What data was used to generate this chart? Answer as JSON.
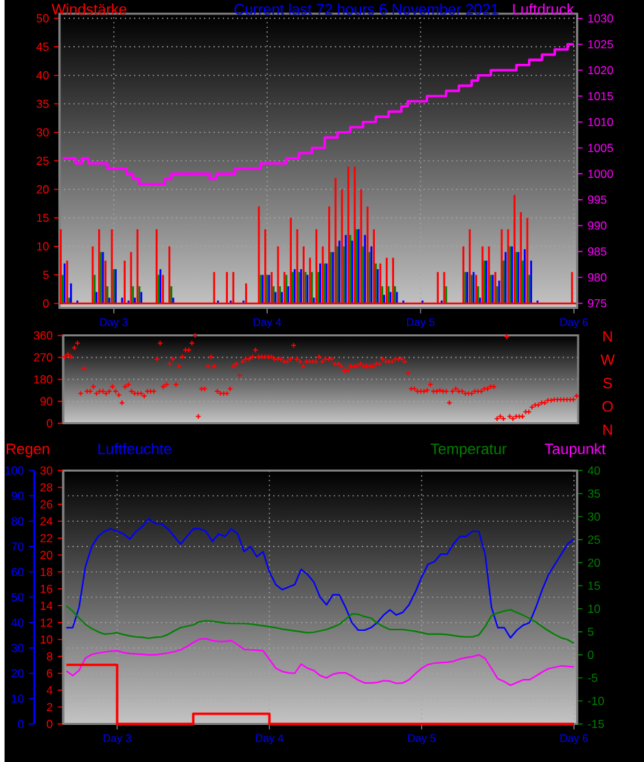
{
  "chart_data": [
    {
      "type": "bar",
      "title": "Current last 72 hours 6 November 2021",
      "ylabel": "Windstärke",
      "y2label": "Luftdruck",
      "categories": [
        null,
        null,
        null,
        null,
        null,
        null,
        null,
        null,
        "Day 3",
        null,
        null,
        null,
        null,
        null,
        null,
        null,
        null,
        null,
        null,
        null,
        null,
        null,
        null,
        null,
        null,
        null,
        null,
        null,
        null,
        null,
        null,
        null,
        "Day 4",
        null,
        null,
        null,
        null,
        null,
        null,
        null,
        null,
        null,
        null,
        null,
        null,
        null,
        null,
        null,
        null,
        null,
        null,
        null,
        null,
        null,
        null,
        null,
        "Day 5",
        null,
        null,
        null,
        null,
        null,
        null,
        null,
        null,
        null,
        null,
        null,
        null,
        null,
        null,
        null,
        null,
        null,
        null,
        null,
        null,
        null,
        null,
        null,
        "Day 6"
      ],
      "ylim": [
        -0.8,
        50.8
      ],
      "yticks": [
        0,
        5,
        10,
        15,
        20,
        25,
        30,
        35,
        40,
        45,
        50
      ],
      "y2lim": [
        974.1,
        1030.9
      ],
      "y2ticks": [
        975,
        980,
        985,
        990,
        995,
        1000,
        1005,
        1010,
        1015,
        1020,
        1025,
        1030
      ],
      "grid": true,
      "ref_lines": [
        {
          "axis": "y",
          "value": 0,
          "color": "#ff0000"
        }
      ],
      "series": [
        {
          "color": "#ff0000",
          "values": [
            13,
            7.5,
            0,
            0,
            0,
            10,
            13,
            7.5,
            13,
            0,
            7.5,
            9,
            13,
            0,
            0,
            13,
            5,
            10,
            0,
            0,
            0,
            0,
            0,
            0,
            5.5,
            0,
            5.5,
            5.5,
            0,
            3.5,
            0,
            17,
            13,
            5.5,
            10,
            5.5,
            15,
            13,
            10,
            8,
            13,
            10,
            17,
            22,
            20,
            24,
            24,
            20,
            17,
            13,
            7,
            8,
            8,
            0,
            0,
            0,
            0,
            0,
            0,
            5.5,
            5.5,
            0,
            0,
            10,
            13,
            5,
            10,
            10,
            5.5,
            13,
            13,
            19,
            16,
            15,
            0,
            0,
            0,
            0,
            0,
            0,
            5.5
          ]
        },
        {
          "color": "#008000",
          "values": [
            5,
            1,
            0,
            0,
            0,
            5,
            9,
            3,
            6,
            0,
            0,
            3,
            3,
            0,
            0,
            5,
            0,
            3,
            0,
            0,
            0,
            0,
            0,
            0,
            0,
            0,
            0,
            0,
            0,
            0,
            0,
            5,
            5,
            3,
            3,
            5,
            5.5,
            5.5,
            5.5,
            5.5,
            5.5,
            7,
            9,
            10,
            10,
            12,
            13,
            10,
            9,
            7,
            3,
            3,
            3,
            0,
            0,
            0,
            0,
            0,
            0,
            0,
            3,
            0,
            0,
            5.5,
            5,
            3,
            7.5,
            5,
            3,
            7.5,
            10,
            9,
            7.5,
            5,
            0,
            0,
            0,
            0,
            0,
            0,
            0
          ]
        },
        {
          "color": "#0000ff",
          "values": [
            7,
            3.5,
            0.5,
            0,
            0,
            2,
            9,
            1,
            6,
            1,
            0.5,
            1,
            2,
            0,
            0,
            6,
            0,
            1,
            0,
            0,
            0,
            0,
            0,
            0,
            0.5,
            0,
            0.5,
            0,
            0.5,
            0,
            0,
            5,
            5,
            2,
            2,
            3,
            6,
            6,
            5,
            1,
            7,
            7,
            9,
            11,
            12,
            11,
            13,
            12,
            10,
            6,
            1.5,
            2,
            2,
            0.5,
            0,
            0,
            0.5,
            0,
            0,
            0.5,
            0,
            0,
            0,
            5.5,
            5.5,
            1,
            7.5,
            5,
            4,
            9,
            10,
            9,
            9.5,
            7.5,
            0.5,
            0,
            0,
            0,
            0,
            0,
            0
          ]
        },
        {
          "type": "step",
          "axis": "y2",
          "color": "#ff00ff",
          "values": [
            1003,
            1003,
            1002,
            1003,
            1002,
            1002,
            1002,
            1001,
            1001,
            1001,
            1000,
            999,
            998,
            998,
            998,
            998,
            999,
            1000,
            1000,
            1000,
            1000,
            1000,
            1000,
            999,
            1000,
            1000,
            1000,
            1001,
            1001,
            1001,
            1001,
            1002,
            1002,
            1002,
            1002,
            1003,
            1003,
            1004,
            1004,
            1005,
            1005,
            1007,
            1007,
            1008,
            1008,
            1009,
            1009,
            1010,
            1010,
            1011,
            1011,
            1012,
            1012,
            1013,
            1014,
            1014,
            1014,
            1015,
            1015,
            1015,
            1016,
            1016,
            1017,
            1017,
            1018,
            1019,
            1019,
            1020,
            1020,
            1020,
            1020,
            1021,
            1021,
            1022,
            1022,
            1023,
            1023,
            1024,
            1024,
            1025,
            1025
          ]
        }
      ]
    },
    {
      "type": "scatter",
      "marker": "cross",
      "color": "#ff0000",
      "grid": "y",
      "categories": [
        null,
        null,
        null,
        null,
        null,
        null,
        null,
        null,
        null,
        null,
        null,
        null,
        null,
        null,
        null,
        null,
        null,
        null,
        null,
        null,
        null,
        null,
        null,
        null,
        null,
        null,
        null,
        null,
        null,
        null,
        null,
        null,
        null,
        null,
        null,
        null,
        null,
        null,
        null,
        null,
        null,
        null,
        null,
        null,
        null,
        null,
        null,
        null,
        null,
        null,
        null,
        null,
        null,
        null,
        null,
        null,
        null,
        null,
        null,
        null,
        null,
        null,
        null,
        null,
        null,
        null,
        null,
        null,
        null,
        null,
        null,
        null,
        null,
        null,
        null,
        null,
        null,
        null,
        null,
        null,
        null,
        null,
        null,
        null,
        null,
        null,
        null,
        null,
        null,
        null,
        null,
        null,
        null,
        null,
        null,
        null,
        null,
        null,
        null,
        null,
        null,
        null,
        null,
        null,
        null,
        null,
        null,
        null,
        null,
        null,
        null,
        null,
        null,
        null,
        null,
        null,
        null,
        null,
        null,
        null,
        null,
        null,
        null,
        null,
        null,
        null,
        null,
        null,
        null,
        null,
        null,
        null,
        null,
        null,
        null,
        null,
        null,
        null,
        null,
        null,
        null,
        null,
        null,
        null,
        null,
        null,
        null,
        null,
        null,
        null,
        null,
        null,
        null,
        null,
        null,
        null,
        null,
        null,
        null,
        null,
        null,
        null
      ],
      "ylim": [
        0,
        360
      ],
      "yticks": [
        0,
        90,
        180,
        270,
        360
      ],
      "annotations": [
        "N",
        "W",
        "S",
        "O",
        "N"
      ],
      "values": [
        272,
        281,
        272,
        309,
        328,
        122,
        225,
        131,
        131,
        150,
        122,
        131,
        131,
        122,
        131,
        150,
        131,
        116,
        84,
        150,
        159,
        131,
        122,
        122,
        122,
        112,
        131,
        131,
        131,
        263,
        328,
        150,
        159,
        244,
        263,
        159,
        234,
        272,
        300,
        300,
        328,
        360,
        28,
        141,
        141,
        234,
        272,
        234,
        131,
        122,
        122,
        122,
        141,
        234,
        244,
        197,
        253,
        263,
        263,
        272,
        300,
        272,
        272,
        272,
        272,
        272,
        263,
        263,
        263,
        253,
        253,
        263,
        319,
        263,
        253,
        234,
        253,
        253,
        253,
        253,
        272,
        253,
        263,
        263,
        263,
        244,
        244,
        234,
        216,
        216,
        234,
        234,
        234,
        244,
        234,
        234,
        234,
        234,
        244,
        244,
        263,
        253,
        253,
        253,
        263,
        263,
        263,
        253,
        206,
        141,
        141,
        131,
        131,
        131,
        135,
        159,
        131,
        131,
        135,
        131,
        131,
        84,
        131,
        141,
        131,
        131,
        122,
        122,
        122,
        131,
        131,
        131,
        141,
        141,
        150,
        150,
        19,
        28,
        19,
        355,
        28,
        19,
        28,
        28,
        28,
        47,
        47,
        66,
        75,
        75,
        84,
        84,
        94,
        94,
        97,
        97,
        97,
        97,
        97,
        97,
        97,
        112
      ]
    },
    {
      "type": "line",
      "legend": "top",
      "grid": true,
      "categories": [
        null,
        null,
        null,
        null,
        null,
        null,
        null,
        null,
        "Day 3",
        null,
        null,
        null,
        null,
        null,
        null,
        null,
        null,
        null,
        null,
        null,
        null,
        null,
        null,
        null,
        null,
        null,
        null,
        null,
        null,
        null,
        null,
        null,
        "Day 4",
        null,
        null,
        null,
        null,
        null,
        null,
        null,
        null,
        null,
        null,
        null,
        null,
        null,
        null,
        null,
        null,
        null,
        null,
        null,
        null,
        null,
        null,
        null,
        "Day 5",
        null,
        null,
        null,
        null,
        null,
        null,
        null,
        null,
        null,
        null,
        null,
        null,
        null,
        null,
        null,
        null,
        null,
        null,
        null,
        null,
        null,
        null,
        null,
        "Day 6"
      ],
      "ylim": [
        0,
        100
      ],
      "yticks": [
        0,
        10,
        20,
        30,
        40,
        50,
        60,
        70,
        80,
        90,
        100
      ],
      "y2lim": [
        -15,
        40
      ],
      "y2ticks": [
        -15,
        -10,
        -5,
        0,
        5,
        10,
        15,
        20,
        25,
        30,
        35,
        40
      ],
      "y3lim": [
        0,
        30
      ],
      "y3ticks": [
        0,
        2,
        4,
        6,
        8,
        10,
        12,
        14,
        16,
        18,
        20,
        22,
        24,
        26,
        28,
        30
      ],
      "series": [
        {
          "name": "Regen",
          "type": "step",
          "axis": "y3",
          "color": "#ff0000",
          "values": [
            7,
            7,
            7,
            7,
            7,
            7,
            7,
            7,
            0,
            0,
            0,
            0,
            0,
            0,
            0,
            0,
            0,
            0,
            0,
            0,
            1.2,
            1.2,
            1.2,
            1.2,
            1.2,
            1.2,
            1.2,
            1.2,
            1.2,
            1.2,
            1.2,
            1.2,
            0,
            0,
            0,
            0,
            0,
            0,
            0,
            0,
            0,
            0,
            0,
            0,
            0,
            0,
            0,
            0,
            0,
            0,
            0,
            0,
            0,
            0,
            0,
            0,
            0,
            0,
            0,
            0,
            0,
            0,
            0,
            0,
            0,
            0,
            0,
            0,
            0,
            0,
            0,
            0,
            0,
            0,
            0,
            0,
            0,
            0,
            0,
            0,
            0
          ]
        },
        {
          "name": "Luftfeuchte",
          "color": "#0000ff",
          "values": [
            38,
            38,
            46,
            62,
            70,
            74,
            76,
            77,
            76,
            75,
            73,
            76,
            78,
            81,
            79,
            79,
            77,
            74,
            71,
            74,
            77,
            77,
            76,
            72,
            75,
            74,
            77,
            75,
            68,
            70,
            66,
            68,
            60,
            55,
            53,
            54,
            55,
            61,
            59,
            56,
            50,
            47,
            51,
            51,
            46,
            40,
            37,
            37,
            38,
            40,
            43,
            45,
            43,
            44,
            47,
            52,
            58,
            63,
            64,
            67,
            67,
            71,
            74,
            74,
            76,
            76,
            67,
            46,
            38,
            38,
            34,
            37,
            39,
            40,
            46,
            53,
            59,
            63,
            67,
            71,
            73
          ]
        },
        {
          "name": "Temperatur",
          "axis": "y2",
          "color": "#008000",
          "values": [
            10.6,
            9.5,
            8,
            6.6,
            5.7,
            5,
            4.5,
            4.6,
            4.8,
            4.4,
            4.1,
            3.9,
            3.8,
            3.6,
            3.8,
            3.9,
            4.4,
            5.2,
            5.9,
            6.2,
            6.5,
            7.2,
            7.4,
            7.3,
            7.1,
            6.9,
            6.8,
            6.8,
            6.8,
            6.7,
            6.5,
            6.3,
            6.1,
            5.9,
            5.6,
            5.4,
            5.2,
            5,
            4.8,
            4.9,
            5.2,
            5.5,
            6,
            6.6,
            7.7,
            8.9,
            8.8,
            8.3,
            8,
            6.9,
            6.1,
            5.5,
            5.5,
            5.5,
            5.3,
            5.1,
            4.8,
            4.5,
            4.5,
            4.5,
            4.4,
            4.2,
            4,
            3.9,
            3.9,
            4.3,
            6.1,
            8.5,
            9.1,
            9.5,
            9.8,
            9.2,
            8.6,
            7.9,
            7.1,
            6.1,
            5.2,
            4.4,
            3.7,
            3.3,
            2.5
          ]
        },
        {
          "name": "Taupunkt",
          "axis": "y2",
          "color": "#ff00ff",
          "values": [
            -3.5,
            -4.5,
            -3.4,
            -0.7,
            0.1,
            0.4,
            0.6,
            0.8,
            0.9,
            0.5,
            0.3,
            0.2,
            0.1,
            0,
            0,
            0.2,
            0.4,
            0.7,
            1.1,
            1.8,
            2.7,
            3.4,
            3.5,
            3.1,
            2.9,
            2.9,
            3.1,
            2.2,
            1.2,
            1.1,
            1,
            0.9,
            -1,
            -2.9,
            -3.6,
            -3.9,
            -4,
            -2,
            -2.9,
            -3.4,
            -4.5,
            -5,
            -4.2,
            -3.9,
            -3.9,
            -4.6,
            -5.5,
            -6.1,
            -6.1,
            -6,
            -5.6,
            -5.7,
            -6.2,
            -6.1,
            -5.4,
            -4.1,
            -2.9,
            -2.1,
            -1.8,
            -1.7,
            -1.6,
            -1.4,
            -0.9,
            -0.6,
            -0.4,
            0,
            -0.8,
            -3,
            -5.2,
            -5.8,
            -6.6,
            -6,
            -5.4,
            -5.4,
            -4.6,
            -3.7,
            -3,
            -2.7,
            -2.4,
            -2.5,
            -2.6
          ]
        }
      ]
    }
  ]
}
